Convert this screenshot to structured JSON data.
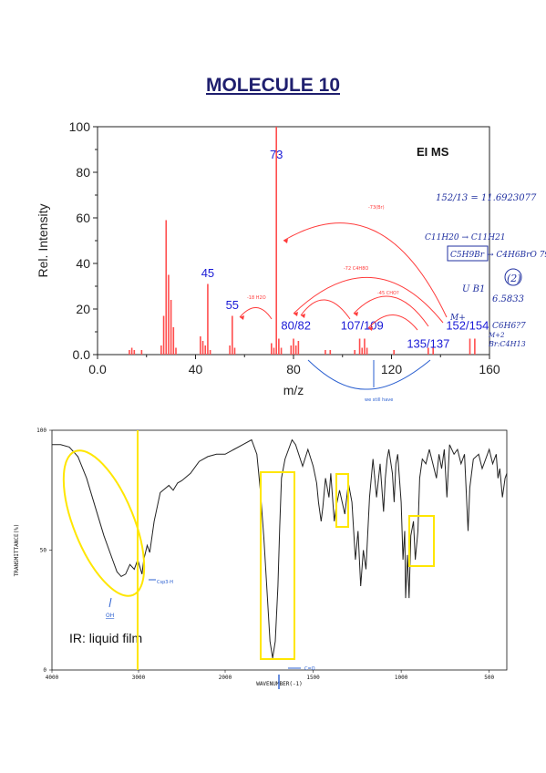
{
  "title": "MOLECULE 10",
  "chart_data": [
    {
      "type": "bar",
      "label": "EI MS",
      "xlabel": "m/z",
      "ylabel": "Rel. Intensity",
      "xlim": [
        0,
        160
      ],
      "ylim": [
        0,
        100
      ],
      "xticks": [
        "0.0",
        "40",
        "80",
        "120",
        "160"
      ],
      "yticks": [
        "0.0",
        "20",
        "40",
        "60",
        "80",
        "100"
      ],
      "bar_color": "#ff4d4d",
      "peaks": [
        {
          "mz": 13,
          "intensity": 2
        },
        {
          "mz": 14,
          "intensity": 3
        },
        {
          "mz": 15,
          "intensity": 2
        },
        {
          "mz": 18,
          "intensity": 2
        },
        {
          "mz": 26,
          "intensity": 4
        },
        {
          "mz": 27,
          "intensity": 17
        },
        {
          "mz": 28,
          "intensity": 59
        },
        {
          "mz": 29,
          "intensity": 35
        },
        {
          "mz": 30,
          "intensity": 24
        },
        {
          "mz": 31,
          "intensity": 12
        },
        {
          "mz": 32,
          "intensity": 3
        },
        {
          "mz": 42,
          "intensity": 8
        },
        {
          "mz": 43,
          "intensity": 6
        },
        {
          "mz": 44,
          "intensity": 4
        },
        {
          "mz": 45,
          "intensity": 31
        },
        {
          "mz": 46,
          "intensity": 2
        },
        {
          "mz": 54,
          "intensity": 4
        },
        {
          "mz": 55,
          "intensity": 17
        },
        {
          "mz": 56,
          "intensity": 3
        },
        {
          "mz": 71,
          "intensity": 5
        },
        {
          "mz": 72,
          "intensity": 3
        },
        {
          "mz": 73,
          "intensity": 100
        },
        {
          "mz": 74,
          "intensity": 7
        },
        {
          "mz": 75,
          "intensity": 3
        },
        {
          "mz": 79,
          "intensity": 4
        },
        {
          "mz": 80,
          "intensity": 7
        },
        {
          "mz": 81,
          "intensity": 4
        },
        {
          "mz": 82,
          "intensity": 6
        },
        {
          "mz": 93,
          "intensity": 2
        },
        {
          "mz": 95,
          "intensity": 2
        },
        {
          "mz": 105,
          "intensity": 2
        },
        {
          "mz": 107,
          "intensity": 7
        },
        {
          "mz": 108,
          "intensity": 3
        },
        {
          "mz": 109,
          "intensity": 7
        },
        {
          "mz": 110,
          "intensity": 3
        },
        {
          "mz": 121,
          "intensity": 2
        },
        {
          "mz": 135,
          "intensity": 3
        },
        {
          "mz": 137,
          "intensity": 3
        },
        {
          "mz": 152,
          "intensity": 7
        },
        {
          "mz": 154,
          "intensity": 7
        }
      ],
      "peak_labels": [
        {
          "text": "73",
          "mz": 73,
          "y": 86
        },
        {
          "text": "45",
          "mz": 45,
          "y": 34
        },
        {
          "text": "55",
          "mz": 55,
          "y": 20
        },
        {
          "text": "80/82",
          "mz": 81,
          "y": 11
        },
        {
          "text": "107/109",
          "mz": 108,
          "y": 11
        },
        {
          "text": "135/137",
          "mz": 135,
          "y": 3
        },
        {
          "text": "152/154",
          "mz": 151,
          "y": 11
        }
      ],
      "notes": [
        "152/13 = 11.6923077",
        "C11H20 → C11H21",
        "C5H9Br → C4H6BrO 79",
        "(2)",
        "U B1",
        "6.5833",
        "C6H6?7",
        "Br:C4H13",
        "M+",
        "M+2",
        "-73(Br)",
        "-72 C4H8O",
        "-45 CHO?",
        "-18 H2O",
        "we still have"
      ]
    },
    {
      "type": "line",
      "label": "IR: liquid film",
      "xlabel": "WAVENUMBER(-1)",
      "ylabel": "TRANSMITTANCE(%)",
      "xlim": [
        4000,
        400
      ],
      "ylim": [
        0,
        100
      ],
      "xticks": [
        "4000",
        "3000",
        "2000",
        "1500",
        "1000",
        "500"
      ],
      "yticks": [
        "0",
        "50",
        "100"
      ],
      "points": [
        [
          4000,
          94
        ],
        [
          3900,
          94
        ],
        [
          3800,
          93
        ],
        [
          3700,
          89
        ],
        [
          3600,
          80
        ],
        [
          3500,
          68
        ],
        [
          3400,
          56
        ],
        [
          3300,
          46
        ],
        [
          3250,
          41
        ],
        [
          3200,
          39
        ],
        [
          3150,
          40
        ],
        [
          3100,
          44
        ],
        [
          3050,
          42
        ],
        [
          3010,
          46
        ],
        [
          2960,
          40
        ],
        [
          2940,
          46
        ],
        [
          2900,
          52
        ],
        [
          2870,
          49
        ],
        [
          2820,
          62
        ],
        [
          2750,
          74
        ],
        [
          2650,
          77
        ],
        [
          2600,
          75
        ],
        [
          2550,
          78
        ],
        [
          2500,
          79
        ],
        [
          2400,
          82
        ],
        [
          2300,
          87
        ],
        [
          2200,
          89
        ],
        [
          2100,
          90
        ],
        [
          2000,
          90
        ],
        [
          1950,
          92
        ],
        [
          1900,
          94
        ],
        [
          1850,
          96
        ],
        [
          1820,
          90
        ],
        [
          1800,
          75
        ],
        [
          1780,
          55
        ],
        [
          1760,
          30
        ],
        [
          1745,
          12
        ],
        [
          1730,
          5
        ],
        [
          1715,
          12
        ],
        [
          1700,
          35
        ],
        [
          1690,
          60
        ],
        [
          1680,
          80
        ],
        [
          1660,
          88
        ],
        [
          1620,
          96
        ],
        [
          1600,
          94
        ],
        [
          1560,
          85
        ],
        [
          1530,
          92
        ],
        [
          1500,
          85
        ],
        [
          1480,
          78
        ],
        [
          1470,
          70
        ],
        [
          1455,
          62
        ],
        [
          1445,
          68
        ],
        [
          1430,
          80
        ],
        [
          1410,
          72
        ],
        [
          1400,
          82
        ],
        [
          1380,
          62
        ],
        [
          1370,
          68
        ],
        [
          1350,
          75
        ],
        [
          1320,
          65
        ],
        [
          1300,
          78
        ],
        [
          1280,
          70
        ],
        [
          1260,
          46
        ],
        [
          1245,
          58
        ],
        [
          1230,
          35
        ],
        [
          1215,
          50
        ],
        [
          1200,
          42
        ],
        [
          1180,
          72
        ],
        [
          1160,
          88
        ],
        [
          1140,
          72
        ],
        [
          1120,
          86
        ],
        [
          1100,
          66
        ],
        [
          1090,
          80
        ],
        [
          1080,
          88
        ],
        [
          1070,
          92
        ],
        [
          1050,
          82
        ],
        [
          1040,
          70
        ],
        [
          1030,
          86
        ],
        [
          1020,
          90
        ],
        [
          1000,
          70
        ],
        [
          990,
          46
        ],
        [
          980,
          58
        ],
        [
          975,
          30
        ],
        [
          965,
          48
        ],
        [
          955,
          30
        ],
        [
          945,
          56
        ],
        [
          930,
          62
        ],
        [
          920,
          46
        ],
        [
          905,
          58
        ],
        [
          895,
          80
        ],
        [
          880,
          88
        ],
        [
          860,
          86
        ],
        [
          840,
          92
        ],
        [
          820,
          86
        ],
        [
          800,
          80
        ],
        [
          785,
          90
        ],
        [
          770,
          84
        ],
        [
          755,
          92
        ],
        [
          740,
          72
        ],
        [
          725,
          94
        ],
        [
          700,
          90
        ],
        [
          680,
          92
        ],
        [
          660,
          86
        ],
        [
          640,
          90
        ],
        [
          620,
          58
        ],
        [
          610,
          76
        ],
        [
          590,
          88
        ],
        [
          560,
          90
        ],
        [
          540,
          84
        ],
        [
          500,
          92
        ],
        [
          480,
          86
        ],
        [
          460,
          90
        ],
        [
          450,
          80
        ],
        [
          440,
          84
        ],
        [
          425,
          72
        ],
        [
          410,
          80
        ],
        [
          400,
          82
        ]
      ],
      "annotations": [
        "OH",
        "C=O",
        "Csp3-H"
      ]
    }
  ]
}
